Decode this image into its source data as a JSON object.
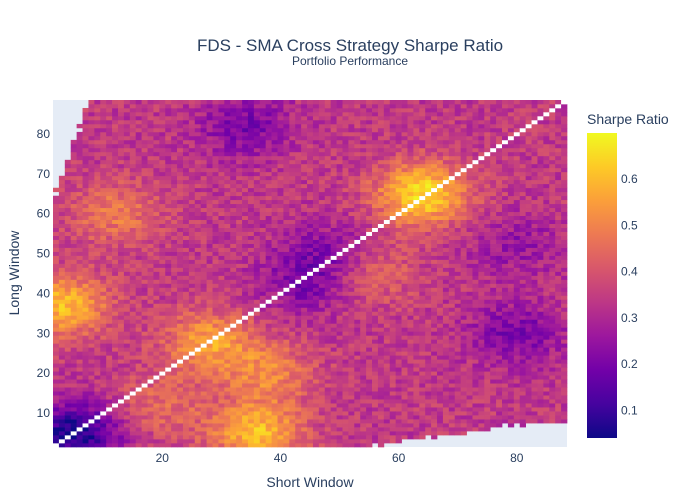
{
  "chart_data": {
    "type": "heatmap",
    "title": "FDS - SMA Cross Strategy Sharpe Ratio",
    "subtitle": "Portfolio Performance",
    "xlabel": "Short Window",
    "ylabel": "Long Window",
    "x_range": [
      2,
      88
    ],
    "y_range": [
      2,
      88
    ],
    "xlim": [
      1.5,
      88.5
    ],
    "ylim": [
      1.5,
      88.5
    ],
    "x_ticks": [
      20,
      40,
      60,
      80
    ],
    "y_ticks": [
      10,
      20,
      30,
      40,
      50,
      60,
      70,
      80
    ],
    "colorbar": {
      "title": "Sharpe Ratio",
      "min": 0.04,
      "max": 0.7,
      "ticks": [
        0.1,
        0.2,
        0.3,
        0.4,
        0.5,
        0.6
      ],
      "tick_labels": [
        "0.1",
        "0.2",
        "0.3",
        "0.4",
        "0.5",
        "0.6"
      ],
      "colorscale": [
        "#0d0887",
        "#46039f",
        "#7201a8",
        "#9c179e",
        "#bd3786",
        "#d8576b",
        "#ed7953",
        "#fb9f3a",
        "#fdca26",
        "#f0f921"
      ]
    },
    "diagonal": "white cells where short window equals long window",
    "notes": "cells missing (background shown) near top-left and bottom-right corners",
    "hotspots": [
      {
        "x": 64,
        "y": 65,
        "value": 0.66
      },
      {
        "x": 36,
        "y": 5,
        "value": 0.6
      },
      {
        "x": 3,
        "y": 37,
        "value": 0.6
      },
      {
        "x": 28,
        "y": 28,
        "value": 0.55
      },
      {
        "x": 38,
        "y": 20,
        "value": 0.5
      },
      {
        "x": 12,
        "y": 60,
        "value": 0.48
      },
      {
        "x": 20,
        "y": 12,
        "value": 0.45
      },
      {
        "x": 55,
        "y": 45,
        "value": 0.45
      },
      {
        "x": 5,
        "y": 5,
        "value": 0.05
      },
      {
        "x": 34,
        "y": 82,
        "value": 0.2
      },
      {
        "x": 80,
        "y": 30,
        "value": 0.2
      },
      {
        "x": 48,
        "y": 50,
        "value": 0.22
      },
      {
        "x": 80,
        "y": 52,
        "value": 0.25
      },
      {
        "x": 44,
        "y": 42,
        "value": 0.22
      }
    ],
    "base_value": 0.34
  },
  "colors": {
    "plot_background": "#e5ecf6",
    "diagonal": "#ffffff",
    "text": "#2a3f5f"
  }
}
